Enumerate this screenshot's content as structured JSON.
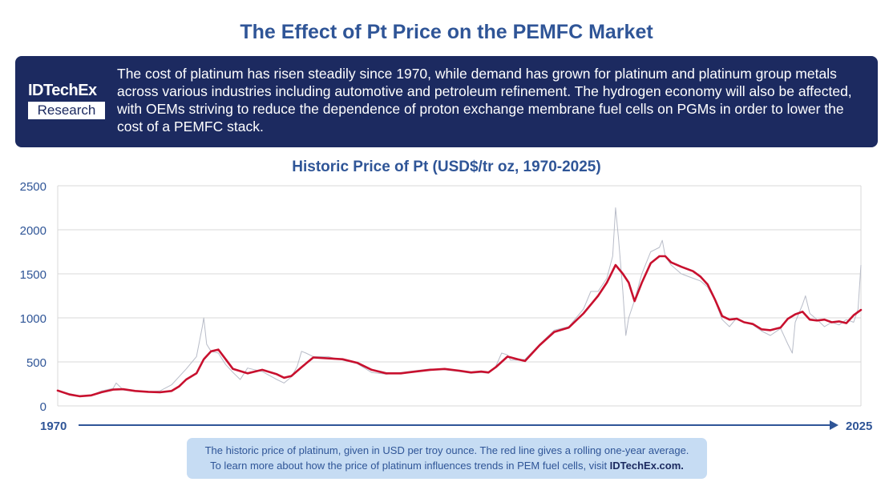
{
  "title": "The Effect of Pt Price on the PEMFC Market",
  "banner": {
    "logo_top": "IDTechEx",
    "logo_bottom": "Research",
    "text": "The cost of platinum has risen steadily since 1970, while demand has grown for platinum and platinum group metals across various industries including automotive and petroleum refinement. The hydrogen economy will also be affected, with OEMs striving to reduce the dependence of proton exchange membrane fuel cells on PGMs in order to lower the cost of a PEMFC stack."
  },
  "note": {
    "line1": "The historic price of platinum, given in USD per troy ounce. The red line gives a rolling one-year average.",
    "line2_prefix": "To learn more about how the price of platinum influences trends in PEM fuel cells, visit ",
    "line2_link": "IDTechEx.com."
  },
  "colors": {
    "title": "#2f5597",
    "banner": "#1c2a60",
    "average_line": "#c8102e",
    "raw_line": "#b8bcc8",
    "note_bg": "#c6dcf3"
  },
  "chart_data": {
    "type": "line",
    "title": "Historic Price of Pt (USD$/tr oz, 1970-2025)",
    "xlabel": "",
    "ylabel": "",
    "x_start_label": "1970",
    "x_end_label": "2025",
    "xlim": [
      1970,
      2025
    ],
    "ylim": [
      0,
      2500
    ],
    "yticks": [
      0,
      500,
      1000,
      1500,
      2000,
      2500
    ],
    "grid": true,
    "series": [
      {
        "role": "rolling-average",
        "x": [
          1970.0,
          1970.8,
          1971.5,
          1972.3,
          1973.0,
          1973.8,
          1974.5,
          1975.3,
          1976.2,
          1977.0,
          1977.8,
          1978.3,
          1978.8,
          1979.5,
          1980.0,
          1980.5,
          1981.0,
          1981.5,
          1982.0,
          1983.0,
          1984.0,
          1985.0,
          1985.5,
          1986.0,
          1986.7,
          1987.5,
          1988.5,
          1989.5,
          1990.5,
          1991.5,
          1992.5,
          1993.5,
          1994.5,
          1995.5,
          1996.5,
          1997.5,
          1998.3,
          1999.0,
          1999.5,
          2000.0,
          2000.8,
          2001.5,
          2002.0,
          2003.0,
          2004.0,
          2005.0,
          2006.0,
          2007.0,
          2007.6,
          2008.2,
          2008.7,
          2009.1,
          2009.5,
          2010.0,
          2010.6,
          2011.2,
          2011.6,
          2012.0,
          2012.7,
          2013.5,
          2014.0,
          2014.5,
          2015.0,
          2015.5,
          2016.0,
          2016.5,
          2017.0,
          2017.6,
          2018.2,
          2018.8,
          2019.5,
          2020.0,
          2020.5,
          2021.0,
          2021.5,
          2022.0,
          2022.5,
          2023.0,
          2023.5,
          2024.0,
          2024.5,
          2025.0
        ],
        "y": [
          175,
          130,
          110,
          120,
          155,
          185,
          190,
          170,
          160,
          155,
          170,
          220,
          300,
          370,
          530,
          620,
          640,
          530,
          420,
          370,
          410,
          360,
          320,
          340,
          440,
          550,
          540,
          530,
          490,
          410,
          370,
          370,
          390,
          410,
          420,
          400,
          380,
          390,
          380,
          440,
          560,
          530,
          510,
          690,
          840,
          890,
          1050,
          1250,
          1400,
          1600,
          1500,
          1400,
          1190,
          1400,
          1620,
          1700,
          1700,
          1630,
          1580,
          1530,
          1470,
          1380,
          1210,
          1020,
          980,
          990,
          950,
          930,
          870,
          860,
          890,
          990,
          1040,
          1070,
          980,
          970,
          980,
          950,
          960,
          940,
          1030,
          1090
        ]
      },
      {
        "role": "daily-price",
        "x": [
          1970.0,
          1970.8,
          1971.5,
          1972.3,
          1973.0,
          1973.8,
          1974.0,
          1974.5,
          1975.3,
          1976.2,
          1977.0,
          1977.8,
          1978.3,
          1978.8,
          1979.5,
          1979.9,
          1980.0,
          1980.2,
          1980.5,
          1981.0,
          1981.5,
          1982.0,
          1982.5,
          1983.0,
          1984.0,
          1985.0,
          1985.5,
          1986.0,
          1986.4,
          1986.7,
          1987.0,
          1987.5,
          1988.5,
          1989.5,
          1990.5,
          1991.5,
          1992.5,
          1993.5,
          1994.5,
          1995.5,
          1996.5,
          1997.5,
          1998.3,
          1999.0,
          1999.5,
          2000.0,
          2000.4,
          2000.8,
          2001.0,
          2001.5,
          2002.0,
          2003.0,
          2004.0,
          2005.0,
          2006.0,
          2006.5,
          2007.0,
          2007.6,
          2008.0,
          2008.2,
          2008.4,
          2008.7,
          2008.9,
          2009.1,
          2009.5,
          2010.0,
          2010.6,
          2011.2,
          2011.4,
          2011.6,
          2012.0,
          2012.7,
          2013.5,
          2014.0,
          2014.5,
          2015.0,
          2015.5,
          2016.0,
          2016.5,
          2017.0,
          2017.6,
          2018.2,
          2018.8,
          2019.5,
          2020.0,
          2020.3,
          2020.5,
          2021.0,
          2021.2,
          2021.5,
          2022.0,
          2022.5,
          2023.0,
          2023.5,
          2024.0,
          2024.5,
          2024.8,
          2025.0
        ],
        "y": [
          180,
          140,
          115,
          120,
          170,
          200,
          260,
          180,
          165,
          160,
          170,
          240,
          330,
          420,
          560,
          900,
          1000,
          700,
          620,
          600,
          470,
          380,
          300,
          430,
          390,
          300,
          260,
          330,
          450,
          620,
          600,
          560,
          560,
          520,
          480,
          380,
          360,
          380,
          400,
          420,
          410,
          390,
          370,
          380,
          370,
          450,
          600,
          580,
          520,
          520,
          530,
          700,
          860,
          900,
          1100,
          1300,
          1300,
          1450,
          1700,
          2250,
          1900,
          1300,
          800,
          1000,
          1200,
          1500,
          1750,
          1800,
          1880,
          1700,
          1600,
          1500,
          1450,
          1420,
          1350,
          1200,
          980,
          900,
          1000,
          950,
          920,
          850,
          800,
          880,
          700,
          600,
          950,
          1150,
          1250,
          1050,
          980,
          900,
          950,
          920,
          980,
          950,
          1100,
          1600
        ]
      }
    ]
  }
}
